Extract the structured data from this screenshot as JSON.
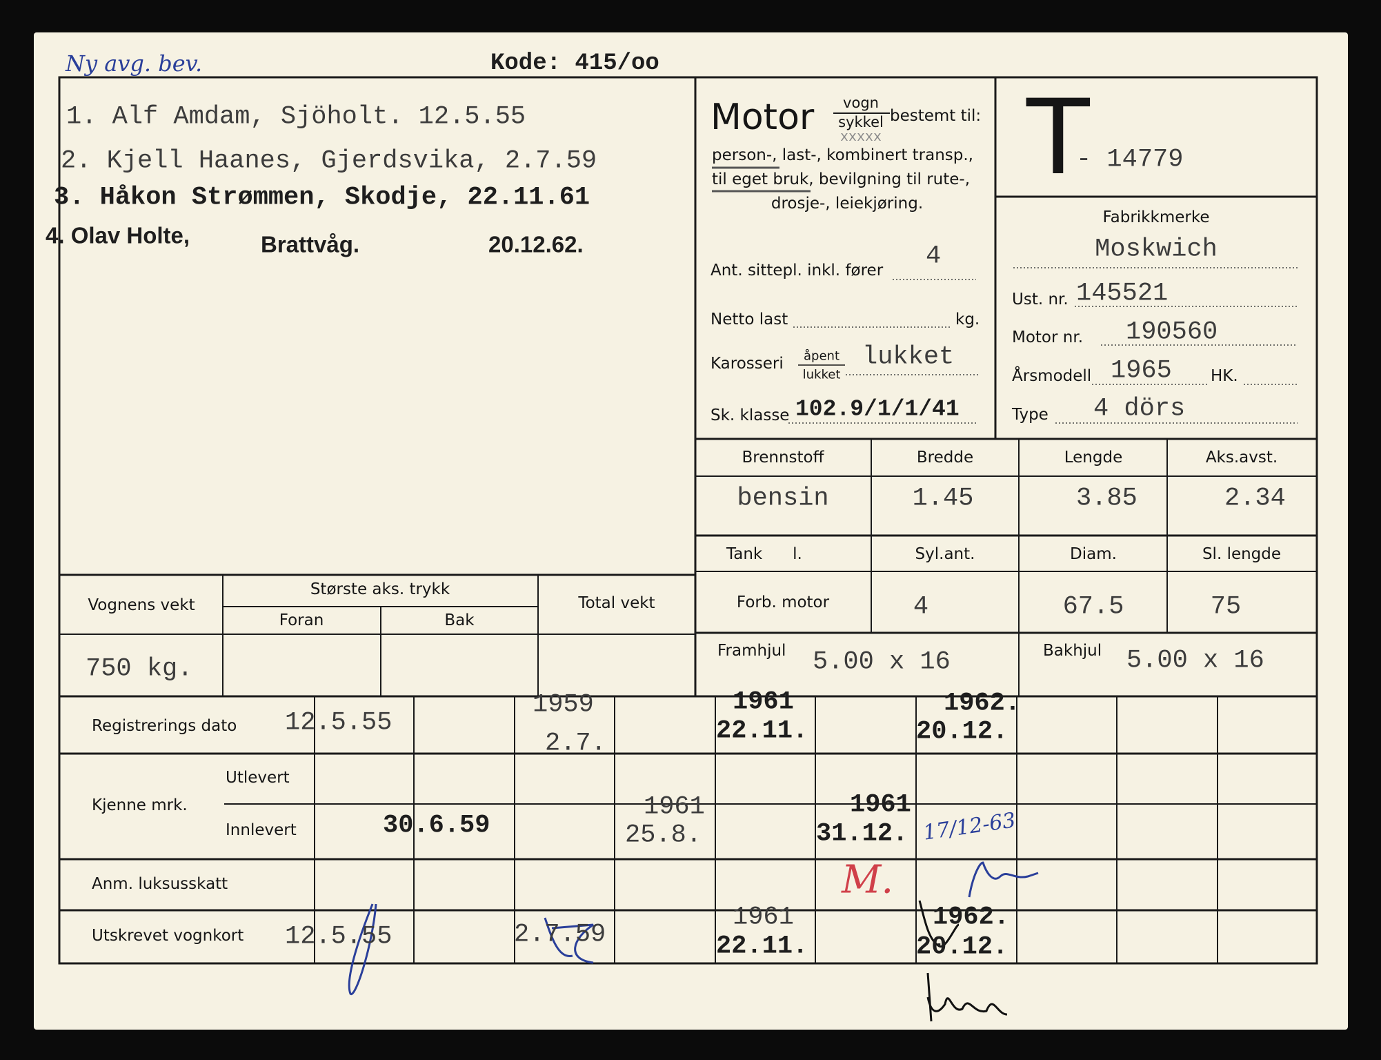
{
  "header": {
    "handwritten_note": "Ny avg. bev.",
    "kode": "Kode: 415/oo"
  },
  "owners": [
    "1. Alf Amdam, Sjöholt. 12.5.55",
    "2. Kjell Haanes, Gjerdsvika, 2.7.59",
    "3. Håkon Strømmen, Skodje, 22.11.61",
    {
      "name": "4. Olav Holte,",
      "place": "Brattvåg.",
      "date": "20.12.62."
    }
  ],
  "motor_block": {
    "motor": "Motor",
    "vogn": "vogn",
    "sykkel": "sykkel",
    "struck": "xxxxx",
    "bestemt": "bestemt til:",
    "line1": "person-, last-, kombinert transp.,",
    "line2": "til eget bruk, bevilgning til rute-,",
    "line3": "drosje-, leiekjøring.",
    "ant_label": "Ant. sittepl. inkl. fører",
    "ant_value": "4",
    "netto_label": "Netto last",
    "netto_unit": "kg.",
    "netto_value": "",
    "karosseri_label": "Karosseri",
    "apent": "åpent",
    "lukket": "lukket",
    "karosseri_value": "lukket",
    "sk_label": "Sk. klasse",
    "sk_value": "102.9/1/1/41"
  },
  "registration": {
    "letter": "T",
    "number": "- 14779"
  },
  "vehicle": {
    "fabrikk_label": "Fabrikkmerke",
    "fabrikk_value": "Moskwich",
    "ust_label": "Ust. nr.",
    "ust_value": "145521",
    "motor_nr_label": "Motor nr.",
    "motor_nr_value": "190560",
    "arsmodell_label": "Årsmodell",
    "arsmodell_value": "1965",
    "hk_label": "HK.",
    "hk_value": "",
    "type_label": "Type",
    "type_value": "4 dörs"
  },
  "dimensions": {
    "headers": [
      "Brennstoff",
      "Bredde",
      "Lengde",
      "Aks.avst."
    ],
    "values": [
      "bensin",
      "1.45",
      "3.85",
      "2.34"
    ],
    "headers2": [
      "Tank      l.",
      "Syl.ant.",
      "Diam.",
      "Sl. lengde"
    ],
    "values2": [
      "Forb. motor",
      "4",
      "67.5",
      "75"
    ],
    "framhjul_label": "Framhjul",
    "framhjul_value": "5.00 x 16",
    "bakhjul_label": "Bakhjul",
    "bakhjul_value": "5.00 x 16"
  },
  "weights": {
    "vognens_vekt": "Vognens vekt",
    "storste": "Største aks. trykk",
    "foran": "Foran",
    "bak": "Bak",
    "total": "Total vekt",
    "vognens_value": "750 kg."
  },
  "history": {
    "reg_label": "Registrerings dato",
    "kjenne_label": "Kjenne mrk.",
    "utlevert": "Utlevert",
    "innlevert": "Innlevert",
    "anm_label": "Anm. luksusskatt",
    "utskrevet_label": "Utskrevet vognkort",
    "reg": [
      "12.5.55",
      "1959",
      "2.7.",
      "1961",
      "22.11.",
      "1962.",
      "20.12."
    ],
    "inn": [
      "30.6.59",
      "1961",
      "25.8.",
      "1961",
      "31.12.",
      "17/12-63"
    ],
    "anm_mark": "M.",
    "utsk": [
      "12.5.55",
      "2.7.59",
      "1961",
      "22.11.",
      "1962.",
      "20.12."
    ]
  },
  "colors": {
    "paper": "#f6f2e3",
    "ink_blue": "#2a3f9a",
    "ink_red": "#d0404a",
    "background": "#0b0b0b"
  }
}
